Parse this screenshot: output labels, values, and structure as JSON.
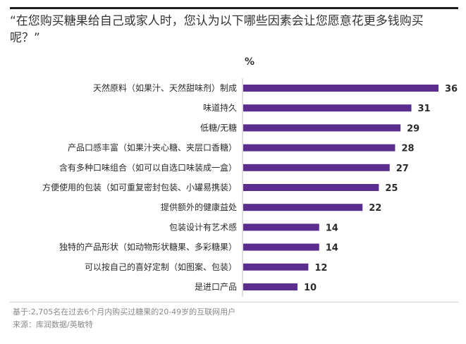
{
  "title": "“在您购买糖果给自己或家人时，您认为以下哪些因素会让您愿意花更多钱购买呢？”",
  "footnote": "基于:2,705名在过去6个月内购买过糖果的20-49岁的互联网用户",
  "source": "来源：库润数据/英敏特",
  "chart_data": {
    "type": "bar",
    "orientation": "horizontal",
    "unit_label": "%",
    "categories": [
      "天然原料（如果汁、天然甜味剂）制成",
      "味道持久",
      "低糖/无糖",
      "产品口感丰富（如果汁夹心糖、夹层口香糖）",
      "含有多种口味组合（如可以自选口味装成一盒）",
      "方便使用的包装（如可重复密封包装、小罐易携装）",
      "提供额外的健康益处",
      "包装设计有艺术感",
      "独特的产品形状（如动物形状糖果、多彩糖果）",
      "可以按自己的喜好定制（如图案、包装）",
      "是进口产品"
    ],
    "values": [
      36,
      31,
      29,
      28,
      27,
      25,
      22,
      14,
      14,
      12,
      10
    ],
    "xlim": [
      0,
      36
    ],
    "bar_color": "#5b2d8e",
    "grid": false,
    "legend": "none"
  }
}
